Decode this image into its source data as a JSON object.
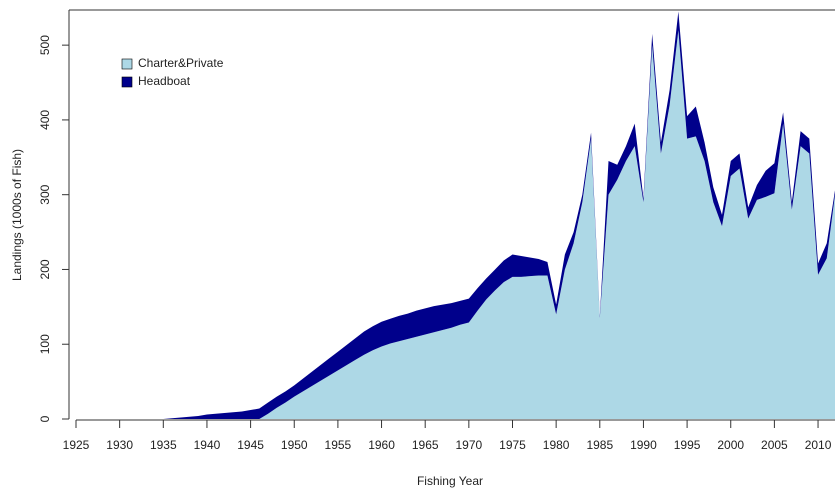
{
  "chart_data": {
    "type": "stacked_area",
    "xlabel": "Fishing Year",
    "ylabel": "Landings (1000s of Fish)",
    "x": [
      1925,
      1926,
      1927,
      1928,
      1929,
      1930,
      1931,
      1932,
      1933,
      1934,
      1935,
      1936,
      1937,
      1938,
      1939,
      1940,
      1941,
      1942,
      1943,
      1944,
      1945,
      1946,
      1947,
      1948,
      1949,
      1950,
      1951,
      1952,
      1953,
      1954,
      1955,
      1956,
      1957,
      1958,
      1959,
      1960,
      1961,
      1962,
      1963,
      1964,
      1965,
      1966,
      1967,
      1968,
      1969,
      1970,
      1971,
      1972,
      1973,
      1974,
      1975,
      1976,
      1977,
      1978,
      1979,
      1980,
      1981,
      1982,
      1983,
      1984,
      1985,
      1986,
      1987,
      1988,
      1989,
      1990,
      1991,
      1992,
      1993,
      1994,
      1995,
      1996,
      1997,
      1998,
      1999,
      2000,
      2001,
      2002,
      2003,
      2004,
      2005,
      2006,
      2007,
      2008,
      2009,
      2010,
      2011,
      2012
    ],
    "series": [
      {
        "name": "Charter&Private",
        "color": "#add8e6",
        "values": [
          0,
          0,
          0,
          0,
          0,
          0,
          0,
          0,
          0,
          0,
          0,
          0,
          0,
          0,
          0,
          0,
          0,
          0,
          0,
          0,
          0,
          0,
          7,
          15,
          22,
          30,
          37,
          44,
          51,
          58,
          65,
          72,
          79,
          86,
          92,
          97,
          101,
          104,
          107,
          110,
          113,
          116,
          119,
          122,
          126,
          129,
          145,
          160,
          172,
          183,
          190,
          190,
          191,
          192,
          192,
          140,
          200,
          235,
          290,
          375,
          135,
          300,
          320,
          345,
          365,
          290,
          500,
          355,
          420,
          520,
          375,
          378,
          345,
          290,
          258,
          325,
          335,
          268,
          293,
          297,
          302,
          395,
          280,
          365,
          355,
          193,
          215,
          305
        ]
      },
      {
        "name": "Headboat",
        "color": "#00008b",
        "values": [
          0,
          0,
          0,
          0,
          0,
          0,
          0,
          0,
          0,
          0,
          0,
          1,
          2,
          3,
          4,
          6,
          7,
          8,
          9,
          10,
          12,
          14,
          15,
          15,
          15,
          15,
          17,
          19,
          21,
          23,
          25,
          27,
          29,
          31,
          32,
          33,
          33,
          34,
          34,
          35,
          35,
          35,
          34,
          33,
          32,
          32,
          30,
          28,
          28,
          29,
          30,
          28,
          25,
          22,
          18,
          13,
          20,
          15,
          10,
          8,
          2,
          45,
          20,
          20,
          30,
          5,
          15,
          15,
          20,
          25,
          30,
          40,
          25,
          20,
          15,
          20,
          20,
          15,
          20,
          35,
          40,
          15,
          10,
          20,
          20,
          15,
          20,
          5
        ]
      }
    ],
    "xlim": [
      1925,
      2012
    ],
    "xticks": [
      1925,
      1930,
      1935,
      1940,
      1945,
      1950,
      1955,
      1960,
      1965,
      1970,
      1975,
      1980,
      1985,
      1990,
      1995,
      2000,
      2005,
      2010
    ],
    "ylim": [
      0,
      547
    ],
    "yticks": [
      0,
      100,
      200,
      300,
      400,
      500
    ],
    "legend": "top-left"
  }
}
